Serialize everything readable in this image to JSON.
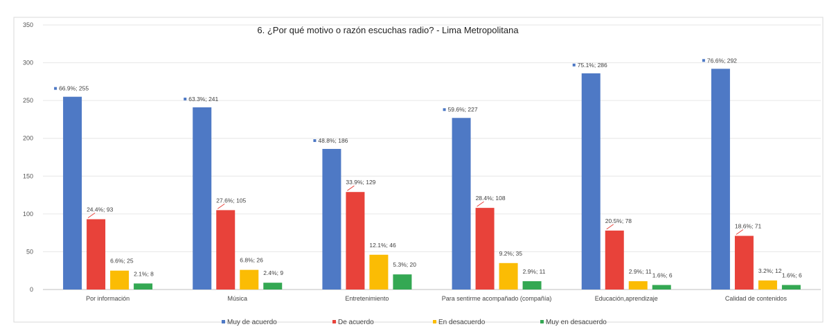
{
  "chart_data": {
    "type": "bar",
    "title": "6. ¿Por qué motivo o razón escuchas radio? - Lima Metropolitana",
    "categories": [
      "Por información",
      "Música",
      "Entretenimiento",
      "Para sentirme acompañado (compañía)",
      "Educación,aprendizaje",
      "Calidad de contenidos"
    ],
    "yticks": [
      0,
      50,
      100,
      150,
      200,
      250,
      300,
      350
    ],
    "ylim": [
      0,
      350
    ],
    "grid": true,
    "legend_position": "bottom",
    "series": [
      {
        "name": "Muy de acuerdo",
        "color": "#4E79C5",
        "values": [
          255,
          241,
          186,
          227,
          286,
          292
        ],
        "labels": [
          "66.9%; 255",
          "63.3%; 241",
          "48.8%; 186",
          "59.6%; 227",
          "75.1%; 286",
          "76.6%; 292"
        ]
      },
      {
        "name": "De acuerdo",
        "color": "#E8423A",
        "values": [
          93,
          105,
          129,
          108,
          78,
          71
        ],
        "labels": [
          "24.4%; 93",
          "27.6%; 105",
          "33.9%; 129",
          "28.4%; 108",
          "20.5%; 78",
          "18.6%; 71"
        ]
      },
      {
        "name": "En desacuerdo",
        "color": "#FBBC04",
        "values": [
          25,
          26,
          46,
          35,
          11,
          12
        ],
        "labels": [
          "6.6%; 25",
          "6.8%; 26",
          "12.1%; 46",
          "9.2%; 35",
          "2.9%; 11",
          "3.2%; 12"
        ]
      },
      {
        "name": "Muy en desacuerdo",
        "color": "#34A853",
        "values": [
          8,
          9,
          20,
          11,
          6,
          6
        ],
        "labels": [
          "2.1%; 8",
          "2.4%; 9",
          "5.3%; 20",
          "2.9%; 11",
          "1.6%; 6",
          "1.6%; 6"
        ]
      }
    ]
  }
}
